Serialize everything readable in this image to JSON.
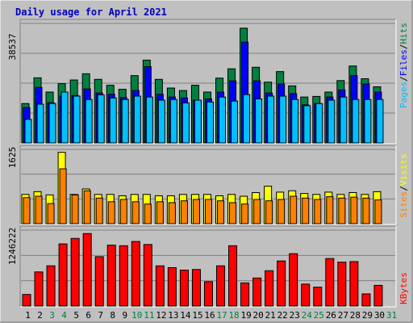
{
  "title": "Daily usage for April 2021",
  "colors": {
    "background": "#c0c0c0",
    "plot_bg": "#c0c0c0",
    "title": "#0000c0",
    "hits": "#008040",
    "files": "#0000ff",
    "pages": "#00c0ff",
    "visits": "#ffff00",
    "sites": "#ff8000",
    "kbytes": "#ff0000",
    "weekend_day": "#008040",
    "weekday": "#000000"
  },
  "chart_data": [
    {
      "type": "bar",
      "categories": [
        "1",
        "2",
        "3",
        "4",
        "5",
        "6",
        "7",
        "8",
        "9",
        "10",
        "11",
        "12",
        "13",
        "14",
        "15",
        "16",
        "17",
        "18",
        "19",
        "20",
        "21",
        "22",
        "23",
        "24",
        "25",
        "26",
        "27",
        "28",
        "29",
        "30",
        "31"
      ],
      "ylim": [
        0,
        38537
      ],
      "yticks": [
        "38537"
      ],
      "ylabel": [
        "Pages",
        "Files",
        "Hits"
      ],
      "series": [
        {
          "name": "Hits",
          "color_key": "hits",
          "values": [
            12700,
            21000,
            16400,
            19100,
            20300,
            22300,
            20500,
            18600,
            17300,
            21700,
            26700,
            20500,
            17700,
            16900,
            18600,
            16400,
            20900,
            23900,
            37000,
            24400,
            19600,
            23000,
            18400,
            14800,
            15000,
            16400,
            20100,
            24800,
            20700,
            18100,
            null
          ]
        },
        {
          "name": "Files",
          "color_key": "files",
          "values": [
            11400,
            17900,
            13000,
            15100,
            15300,
            17400,
            16100,
            15700,
            14600,
            16900,
            24600,
            15700,
            14800,
            14500,
            13800,
            14200,
            16400,
            20000,
            32500,
            20000,
            16100,
            19000,
            15900,
            12300,
            12700,
            14800,
            17100,
            21700,
            19000,
            16400,
            null
          ]
        },
        {
          "name": "Pages",
          "color_key": "pages",
          "values": [
            7600,
            12500,
            12700,
            16400,
            15100,
            14000,
            15500,
            14500,
            14000,
            15100,
            14800,
            13800,
            14000,
            12900,
            13800,
            13200,
            14800,
            13500,
            15600,
            14200,
            15100,
            15100,
            14000,
            12000,
            12700,
            13800,
            14800,
            14000,
            14000,
            14000,
            null
          ]
        }
      ]
    },
    {
      "type": "bar",
      "categories": [
        "1",
        "2",
        "3",
        "4",
        "5",
        "6",
        "7",
        "8",
        "9",
        "10",
        "11",
        "12",
        "13",
        "14",
        "15",
        "16",
        "17",
        "18",
        "19",
        "20",
        "21",
        "22",
        "23",
        "24",
        "25",
        "26",
        "27",
        "28",
        "29",
        "30",
        "31"
      ],
      "ylim": [
        0,
        1625
      ],
      "yticks": [
        "1625"
      ],
      "ylabel": [
        "Sites",
        "Visits"
      ],
      "series": [
        {
          "name": "Visits",
          "color_key": "visits",
          "values": [
            640,
            700,
            630,
            1560,
            640,
            760,
            640,
            640,
            610,
            640,
            640,
            610,
            610,
            640,
            640,
            640,
            610,
            640,
            600,
            680,
            820,
            690,
            720,
            660,
            640,
            690,
            640,
            680,
            640,
            700,
            null
          ]
        },
        {
          "name": "Sites",
          "color_key": "sites",
          "values": [
            570,
            600,
            440,
            1200,
            630,
            720,
            560,
            480,
            530,
            480,
            430,
            480,
            460,
            500,
            530,
            530,
            500,
            460,
            430,
            530,
            500,
            530,
            600,
            560,
            530,
            590,
            560,
            580,
            560,
            520,
            null
          ]
        }
      ]
    },
    {
      "type": "bar",
      "categories": [
        "1",
        "2",
        "3",
        "4",
        "5",
        "6",
        "7",
        "8",
        "9",
        "10",
        "11",
        "12",
        "13",
        "14",
        "15",
        "16",
        "17",
        "18",
        "19",
        "20",
        "21",
        "22",
        "23",
        "24",
        "25",
        "26",
        "27",
        "28",
        "29",
        "30",
        "31"
      ],
      "ylim": [
        0,
        1246222
      ],
      "yticks": [
        "1246222"
      ],
      "ylabel": [
        "KBytes"
      ],
      "series": [
        {
          "name": "KBytes",
          "color_key": "kbytes",
          "values": [
            190000,
            560000,
            660000,
            1020000,
            1110000,
            1190000,
            810000,
            1000000,
            990000,
            1060000,
            1010000,
            660000,
            630000,
            590000,
            600000,
            400000,
            660000,
            990000,
            380000,
            460000,
            580000,
            740000,
            860000,
            360000,
            310000,
            780000,
            720000,
            730000,
            200000,
            340000,
            null
          ]
        }
      ]
    }
  ],
  "legend_words": {
    "top": [
      {
        "text": "Pages",
        "color_key": "pages"
      },
      {
        "text": "/",
        "color_key": "weekday"
      },
      {
        "text": "Files",
        "color_key": "files"
      },
      {
        "text": "/",
        "color_key": "weekday"
      },
      {
        "text": "Hits",
        "color_key": "hits"
      }
    ],
    "mid": [
      {
        "text": "Sites",
        "color_key": "sites"
      },
      {
        "text": "/",
        "color_key": "weekday"
      },
      {
        "text": "Visits",
        "color_key": "visits"
      }
    ],
    "bottom": [
      {
        "text": "KBytes",
        "color_key": "kbytes"
      }
    ]
  },
  "x_axis": {
    "labels": [
      "1",
      "2",
      "3",
      "4",
      "5",
      "6",
      "7",
      "8",
      "9",
      "10",
      "11",
      "12",
      "13",
      "14",
      "15",
      "16",
      "17",
      "18",
      "19",
      "20",
      "21",
      "22",
      "23",
      "24",
      "25",
      "26",
      "27",
      "28",
      "29",
      "30",
      "31"
    ],
    "weekend": [
      "3",
      "4",
      "10",
      "11",
      "17",
      "18",
      "24",
      "25",
      "31"
    ]
  }
}
